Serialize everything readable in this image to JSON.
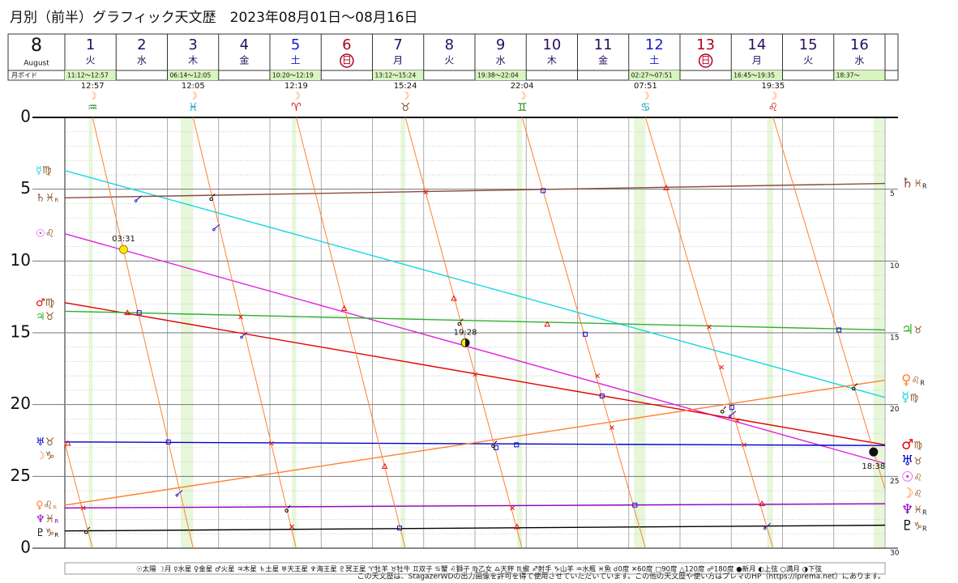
{
  "chart_data": {
    "type": "line",
    "title": "月別（前半）グラフィック天文歴　2023年08月01日～08月16日",
    "month": "8",
    "month_name": "August",
    "void_label": "月ボイド",
    "days": [
      {
        "day": "1",
        "weekday": "火",
        "color": "#2a1060"
      },
      {
        "day": "2",
        "weekday": "水",
        "color": "#2a1060"
      },
      {
        "day": "3",
        "weekday": "木",
        "color": "#2a1060"
      },
      {
        "day": "4",
        "weekday": "金",
        "color": "#2a1060"
      },
      {
        "day": "5",
        "weekday": "土",
        "color": "#1a1acc"
      },
      {
        "day": "6",
        "weekday": "日",
        "color": "#b00020",
        "circled": true
      },
      {
        "day": "7",
        "weekday": "月",
        "color": "#2a1060"
      },
      {
        "day": "8",
        "weekday": "火",
        "color": "#2a1060"
      },
      {
        "day": "9",
        "weekday": "水",
        "color": "#2a1060"
      },
      {
        "day": "10",
        "weekday": "木",
        "color": "#2a1060"
      },
      {
        "day": "11",
        "weekday": "金",
        "color": "#2a1060"
      },
      {
        "day": "12",
        "weekday": "土",
        "color": "#1a1acc"
      },
      {
        "day": "13",
        "weekday": "日",
        "color": "#b00020",
        "circled": true
      },
      {
        "day": "14",
        "weekday": "月",
        "color": "#2a1060"
      },
      {
        "day": "15",
        "weekday": "火",
        "color": "#2a1060"
      },
      {
        "day": "16",
        "weekday": "水",
        "color": "#2a1060"
      }
    ],
    "voids": [
      {
        "label": "11:12～12:57",
        "start": 0.467,
        "end": 0.54
      },
      {
        "label": "06:14～12:05",
        "start": 2.26,
        "end": 2.503
      },
      {
        "label": "10:20～12:19",
        "start": 4.431,
        "end": 4.513
      },
      {
        "label": "13:12～15:24",
        "start": 6.55,
        "end": 6.642
      },
      {
        "label": "19:38～22:04",
        "start": 8.818,
        "end": 8.919
      },
      {
        "label": "02:27～07:51",
        "start": 11.102,
        "end": 11.327
      },
      {
        "label": "16:45～19:35",
        "start": 13.698,
        "end": 13.816
      },
      {
        "label": "18:37～",
        "start": 15.776,
        "end": 16
      }
    ],
    "ingresses": [
      {
        "x": 0.54,
        "time": "12:57",
        "sign": "♒",
        "color": "#108a10"
      },
      {
        "x": 2.503,
        "time": "12:05",
        "sign": "♓",
        "color": "#10a0c0"
      },
      {
        "x": 4.513,
        "time": "12:19",
        "sign": "♈",
        "color": "#d01010"
      },
      {
        "x": 6.642,
        "time": "15:24",
        "sign": "♉",
        "color": "#8a5020"
      },
      {
        "x": 8.919,
        "time": "22:04",
        "sign": "♊",
        "color": "#108a10"
      },
      {
        "x": 11.327,
        "time": "07:51",
        "sign": "♋",
        "color": "#10a0c0"
      },
      {
        "x": 13.816,
        "time": "19:35",
        "sign": "♌",
        "color": "#d01010"
      }
    ],
    "xlim": [
      0,
      16
    ],
    "ylim": [
      0,
      30
    ],
    "yticks": [
      0,
      5,
      10,
      15,
      20,
      25,
      {
        "value": 30,
        "label": "0"
      }
    ],
    "y2lim": [
      0,
      30
    ],
    "y2ticks": [
      5,
      10,
      15,
      20,
      25,
      30
    ],
    "grid": true,
    "series": [
      {
        "name": "☿",
        "sign": "♍",
        "color": "#18d8e0",
        "x": [
          0,
          16
        ],
        "values": [
          3.7,
          19.5
        ]
      },
      {
        "name": "♄",
        "sign": "♓",
        "retro": "R",
        "color": "#8b4a3a",
        "x": [
          0,
          16
        ],
        "values": [
          5.6,
          4.6
        ]
      },
      {
        "name": "☉",
        "sign": "♌",
        "color": "#e020e0",
        "x": [
          0,
          16
        ],
        "values": [
          8.1,
          24.1
        ]
      },
      {
        "name": "♂",
        "sign": "♍",
        "color": "#e00000",
        "x": [
          0,
          16
        ],
        "values": [
          12.9,
          22.8
        ]
      },
      {
        "name": "♃",
        "sign": "♉",
        "color": "#30b030",
        "x": [
          0,
          16
        ],
        "values": [
          13.5,
          14.8
        ]
      },
      {
        "name": "♅",
        "sign": "♉",
        "color": "#0000cc",
        "x": [
          0,
          16
        ],
        "values": [
          22.6,
          22.85
        ]
      },
      {
        "name": "♀",
        "sign": "♌",
        "retro": "R",
        "color": "#ff8030",
        "x": [
          0,
          16
        ],
        "values": [
          27.0,
          18.3
        ]
      },
      {
        "name": "♆",
        "sign": "♓",
        "retro": "R",
        "color": "#9000c0",
        "x": [
          0,
          16
        ],
        "values": [
          27.2,
          26.9
        ]
      },
      {
        "name": "♇",
        "sign": "♑",
        "retro": "R",
        "color": "#000000",
        "x": [
          0,
          16
        ],
        "values": [
          28.8,
          28.4
        ]
      },
      {
        "name": "☽",
        "sign": "♑",
        "sign_end": "♌",
        "color": "#ff8030",
        "thin": true,
        "x": [
          0,
          0.54,
          0.54,
          0.54,
          2.503,
          2.503,
          2.503,
          4.513,
          4.513,
          4.513,
          6.642,
          6.642,
          6.642,
          8.919,
          8.919,
          8.919,
          11.327,
          11.327,
          11.327,
          13.816,
          13.816,
          13.816,
          16
        ],
        "values": [
          22.7,
          30,
          null,
          0,
          30,
          null,
          0,
          30,
          null,
          0,
          30,
          null,
          0,
          30,
          null,
          0,
          30,
          null,
          0,
          30,
          null,
          0,
          25.9
        ]
      }
    ],
    "aspects": [
      {
        "marker": "conj",
        "color": "#000000",
        "x": [
          2.88,
          7.72,
          12.85,
          15.41,
          8.38,
          4.35,
          0.44
        ],
        "values": [
          5.5,
          14.2,
          20.3,
          18.7,
          22.7,
          27.2,
          28.7
        ]
      },
      {
        "marker": "sext",
        "color": "#e01010",
        "x": [
          3.43,
          7.04,
          8.0,
          10.39,
          10.67,
          12.57,
          12.81,
          13.12,
          13.25,
          4.03,
          8.73,
          0.36,
          4.43
        ],
        "values": [
          13.9,
          5.2,
          17.9,
          18.0,
          21.6,
          14.6,
          17.4,
          21.1,
          22.8,
          22.7,
          27.2,
          27.2,
          28.5
        ]
      },
      {
        "marker": "square",
        "color": "#1010d0",
        "x": [
          1.45,
          9.33,
          10.15,
          10.48,
          13.01,
          15.1,
          2.02,
          8.41,
          8.81,
          11.12,
          6.53
        ],
        "values": [
          13.6,
          5.1,
          15.1,
          19.4,
          20.2,
          14.8,
          22.6,
          23.0,
          22.8,
          27.0,
          28.6
        ]
      },
      {
        "marker": "trine",
        "color": "#e01010",
        "x": [
          1.22,
          5.45,
          7.59,
          9.41,
          11.73,
          0.06,
          6.24,
          13.6,
          8.82
        ],
        "values": [
          13.6,
          13.3,
          12.6,
          14.4,
          4.9,
          22.7,
          24.3,
          26.9,
          28.5
        ]
      },
      {
        "marker": "opp",
        "color": "#1010d0",
        "x": [
          1.45,
          2.97,
          3.51,
          13.04,
          2.25,
          13.72
        ],
        "values": [
          5.6,
          7.6,
          15.1,
          20.6,
          26.1,
          28.4
        ]
      }
    ],
    "phases": [
      {
        "kind": "full",
        "x": 1.146,
        "value": 9.2,
        "label": "03:31"
      },
      {
        "kind": "quarter",
        "x": 7.811,
        "value": 15.7,
        "label": "19:28"
      },
      {
        "kind": "new",
        "x": 15.776,
        "value": 23.3,
        "label": "18:38"
      }
    ],
    "legend_text": "☉太陽 ☽月 ☿水星 ♀金星 ♂火星 ♃木星 ♄土星 ♅天王星 ♆海王星 ♇冥王星  ♈牡羊 ♉牡牛 ♊双子 ♋蟹 ♌獅子 ♍乙女 ♎天秤 ♏蠍 ♐射手 ♑山羊 ♒水瓶 ♓魚  ☌0度 ✕60度 □90度 △120度 ☍180度  ●新月 ◐上弦 ○満月 ◑下弦",
    "footer": "この天文歴は、StagazerWDの出力画像を許可を得て使用させていただいています。この他の天文歴や使い方はプレマのHP（https://iprema.net）にあります。"
  }
}
